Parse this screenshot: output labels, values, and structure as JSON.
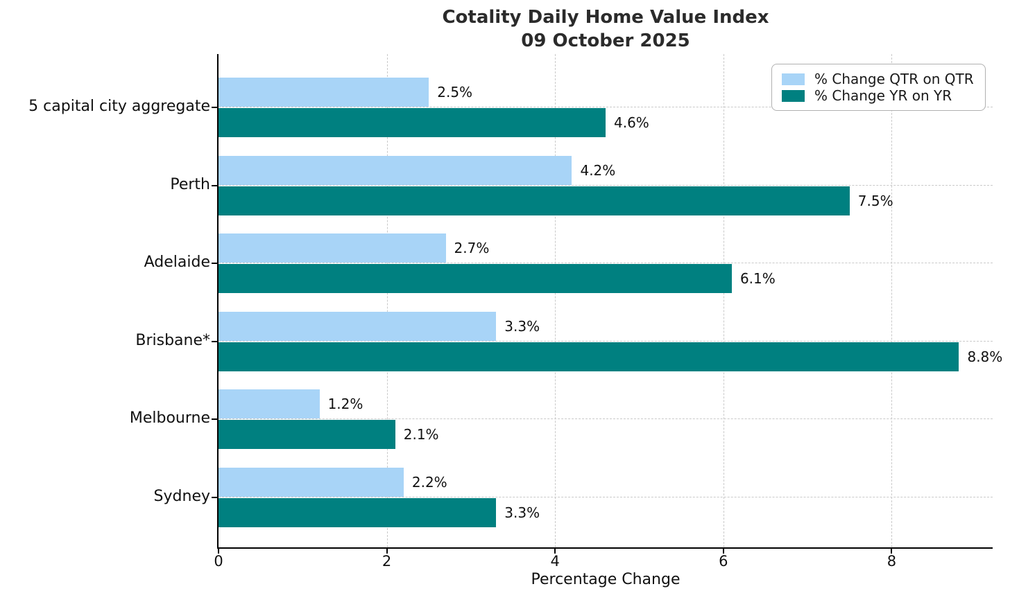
{
  "title": "Cotality Daily Home Value Index",
  "subtitle": "09 October 2025",
  "chart_data": {
    "type": "bar",
    "orientation": "horizontal",
    "title": "Cotality Daily Home Value Index\n09 October 2025",
    "categories": [
      "5 capital city aggregate",
      "Perth",
      "Adelaide",
      "Brisbane*",
      "Melbourne",
      "Sydney"
    ],
    "series": [
      {
        "name": "% Change QTR on QTR",
        "color": "#a8d4f7",
        "values": [
          2.5,
          4.2,
          2.7,
          3.3,
          1.2,
          2.2
        ]
      },
      {
        "name": "% Change YR on YR",
        "color": "#008080",
        "values": [
          4.6,
          7.5,
          6.1,
          8.8,
          2.1,
          3.3
        ]
      }
    ],
    "value_suffix": "%",
    "xlabel": "Percentage Change",
    "xticks": [
      0,
      2,
      4,
      6,
      8
    ],
    "xlim": [
      0,
      9.2
    ],
    "grid": true,
    "grid_style": "dashed",
    "legend_position": "upper right"
  },
  "colors": {
    "qtr_bar": "#a8d4f7",
    "yr_bar": "#008080",
    "gridline": "#c9c9c9",
    "axis": "#000000",
    "title_text": "#2b2b2b"
  }
}
